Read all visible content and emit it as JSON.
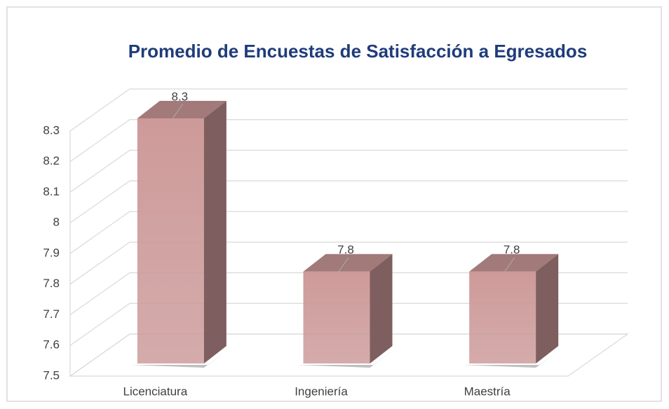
{
  "chart_data": {
    "type": "bar3d",
    "title": "Promedio de Encuestas de Satisfacción a Egresados",
    "categories": [
      "Licenciatura",
      "Ingeniería",
      "Maestría"
    ],
    "values": [
      8.3,
      7.8,
      7.8
    ],
    "color": "#d9a3a2",
    "ylim": [
      7.5,
      8.3
    ],
    "yticks": [
      7.5,
      7.6,
      7.7,
      7.8,
      7.9,
      8,
      8.1,
      8.2,
      8.3
    ],
    "grid": true
  }
}
